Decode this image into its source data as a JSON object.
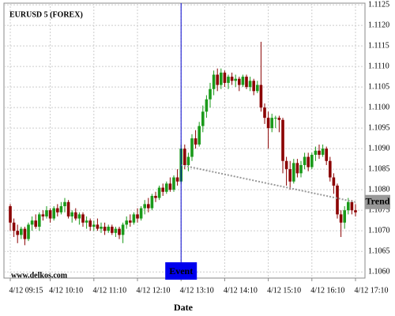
{
  "chart_data": {
    "type": "candlestick",
    "title": "EURUSD 5 (FOREX)",
    "x_label": "Date",
    "watermark": "www.delkos.com",
    "up_color": "#1a9a1a",
    "down_color": "#8b0000",
    "grid": true,
    "ylim": [
      1.10585,
      1.11254
    ],
    "yticks": [
      {
        "value": 1.106,
        "label": "1.1060"
      },
      1.1065,
      {
        "value": 1.107,
        "label": "1.1070"
      },
      1.1075,
      {
        "value": 1.108,
        "label": "1.1080"
      },
      1.1085,
      {
        "value": 1.109,
        "label": "1.1090"
      },
      1.1095,
      {
        "value": 1.11,
        "label": "1.1100"
      },
      1.1105,
      {
        "value": 1.111,
        "label": "1.1110"
      },
      1.1115,
      {
        "value": 1.112,
        "label": "1.1120"
      },
      1.1125
    ],
    "categories": [
      "4/12 09:15",
      null,
      null,
      null,
      null,
      null,
      null,
      null,
      null,
      null,
      null,
      "4/12 10:10",
      null,
      null,
      null,
      null,
      null,
      null,
      null,
      null,
      null,
      null,
      null,
      "4/12 11:10",
      null,
      null,
      null,
      null,
      null,
      null,
      null,
      null,
      null,
      null,
      null,
      "4/12 12:10",
      null,
      null,
      null,
      null,
      null,
      null,
      null,
      null,
      null,
      null,
      null,
      "4/12 13:10",
      null,
      null,
      null,
      null,
      null,
      null,
      null,
      null,
      null,
      null,
      null,
      "4/12 14:10",
      null,
      null,
      null,
      null,
      null,
      null,
      null,
      null,
      null,
      null,
      null,
      "4/12 15:10",
      null,
      null,
      null,
      null,
      null,
      null,
      null,
      null,
      null,
      null,
      null,
      "4/12 16:10",
      null,
      null,
      null,
      null,
      null,
      null,
      null,
      null,
      null,
      null,
      null,
      "4/12 17:10"
    ],
    "ohlc": [
      [
        1.1076,
        1.10765,
        1.107,
        1.1072
      ],
      [
        1.1072,
        1.1073,
        1.10685,
        1.107
      ],
      [
        1.107,
        1.10715,
        1.1067,
        1.1069
      ],
      [
        1.1069,
        1.1071,
        1.1068,
        1.10705
      ],
      [
        1.10705,
        1.1071,
        1.10665,
        1.1068
      ],
      [
        1.1068,
        1.1072,
        1.10675,
        1.10715
      ],
      [
        1.10715,
        1.10735,
        1.107,
        1.10725
      ],
      [
        1.10725,
        1.1074,
        1.10705,
        1.1071
      ],
      [
        1.1071,
        1.10745,
        1.107,
        1.1074
      ],
      [
        1.1074,
        1.1075,
        1.10725,
        1.10735
      ],
      [
        1.10735,
        1.1076,
        1.1073,
        1.1075
      ],
      [
        1.1075,
        1.10755,
        1.1072,
        1.1073
      ],
      [
        1.1073,
        1.1076,
        1.10725,
        1.10755
      ],
      [
        1.10755,
        1.10765,
        1.10735,
        1.10745
      ],
      [
        1.10745,
        1.1077,
        1.1074,
        1.1076
      ],
      [
        1.1076,
        1.1078,
        1.10745,
        1.1077
      ],
      [
        1.1077,
        1.10775,
        1.1073,
        1.10735
      ],
      [
        1.10735,
        1.1075,
        1.1072,
        1.10745
      ],
      [
        1.10745,
        1.10755,
        1.10725,
        1.1073
      ],
      [
        1.1073,
        1.10745,
        1.10715,
        1.1074
      ],
      [
        1.1074,
        1.10745,
        1.1071,
        1.1072
      ],
      [
        1.1072,
        1.10735,
        1.10705,
        1.10725
      ],
      [
        1.10725,
        1.1073,
        1.107,
        1.1071
      ],
      [
        1.1071,
        1.10725,
        1.107,
        1.10715
      ],
      [
        1.10715,
        1.1073,
        1.107,
        1.10705
      ],
      [
        1.10705,
        1.1072,
        1.10695,
        1.1071
      ],
      [
        1.1071,
        1.1072,
        1.1069,
        1.107
      ],
      [
        1.107,
        1.10715,
        1.10695,
        1.1071
      ],
      [
        1.1071,
        1.10715,
        1.1069,
        1.10695
      ],
      [
        1.10695,
        1.1071,
        1.10685,
        1.10705
      ],
      [
        1.10705,
        1.1071,
        1.1068,
        1.1069
      ],
      [
        1.1069,
        1.1072,
        1.1067,
        1.10715
      ],
      [
        1.10715,
        1.10735,
        1.10705,
        1.10725
      ],
      [
        1.10725,
        1.1074,
        1.1071,
        1.1072
      ],
      [
        1.1072,
        1.10745,
        1.10715,
        1.1074
      ],
      [
        1.1074,
        1.10755,
        1.1072,
        1.1073
      ],
      [
        1.1073,
        1.1076,
        1.10725,
        1.10755
      ],
      [
        1.10755,
        1.10775,
        1.1074,
        1.10765
      ],
      [
        1.10765,
        1.1078,
        1.10745,
        1.10755
      ],
      [
        1.10755,
        1.1079,
        1.1075,
        1.10785
      ],
      [
        1.10785,
        1.10795,
        1.1077,
        1.1078
      ],
      [
        1.1078,
        1.1081,
        1.10775,
        1.10805
      ],
      [
        1.10805,
        1.10815,
        1.10785,
        1.10795
      ],
      [
        1.10795,
        1.1082,
        1.1079,
        1.10815
      ],
      [
        1.10815,
        1.1083,
        1.10795,
        1.108
      ],
      [
        1.108,
        1.10835,
        1.10795,
        1.1083
      ],
      [
        1.1083,
        1.1085,
        1.1081,
        1.1082
      ],
      [
        1.1082,
        1.1091,
        1.10815,
        1.109
      ],
      [
        1.109,
        1.1091,
        1.1085,
        1.1086
      ],
      [
        1.1086,
        1.1089,
        1.10845,
        1.1088
      ],
      [
        1.1088,
        1.10935,
        1.1087,
        1.10925
      ],
      [
        1.10925,
        1.10945,
        1.109,
        1.1091
      ],
      [
        1.1091,
        1.10965,
        1.10905,
        1.10955
      ],
      [
        1.10955,
        1.11005,
        1.1094,
        1.1099
      ],
      [
        1.1099,
        1.1103,
        1.10975,
        1.1102
      ],
      [
        1.1102,
        1.1106,
        1.11,
        1.11045
      ],
      [
        1.11045,
        1.1109,
        1.1103,
        1.1108
      ],
      [
        1.1108,
        1.11095,
        1.1104,
        1.11055
      ],
      [
        1.11055,
        1.11095,
        1.11045,
        1.11085
      ],
      [
        1.11085,
        1.1109,
        1.1105,
        1.1106
      ],
      [
        1.1106,
        1.1108,
        1.11045,
        1.11075
      ],
      [
        1.11075,
        1.11085,
        1.11055,
        1.11065
      ],
      [
        1.11065,
        1.1108,
        1.1105,
        1.1107
      ],
      [
        1.1107,
        1.11075,
        1.1104,
        1.11055
      ],
      [
        1.11055,
        1.1108,
        1.1105,
        1.11075
      ],
      [
        1.11075,
        1.1108,
        1.11045,
        1.1105
      ],
      [
        1.1105,
        1.11075,
        1.1104,
        1.11065
      ],
      [
        1.11065,
        1.1107,
        1.1103,
        1.1104
      ],
      [
        1.1104,
        1.11065,
        1.11035,
        1.11055
      ],
      [
        1.11055,
        1.1116,
        1.1099,
        1.11
      ],
      [
        1.11,
        1.1101,
        1.1096,
        1.10975
      ],
      [
        1.10975,
        1.1099,
        1.109,
        1.1095
      ],
      [
        1.1095,
        1.10985,
        1.1094,
        1.10975
      ],
      [
        1.10975,
        1.1098,
        1.1095,
        1.10975
      ],
      [
        1.10975,
        1.1098,
        1.1094,
        1.1097
      ],
      [
        1.1097,
        1.10975,
        1.1084,
        1.1087
      ],
      [
        1.1087,
        1.1088,
        1.1081,
        1.1085
      ],
      [
        1.1085,
        1.1087,
        1.108,
        1.1082
      ],
      [
        1.1082,
        1.10875,
        1.10815,
        1.10865
      ],
      [
        1.10865,
        1.10875,
        1.1083,
        1.1084
      ],
      [
        1.1084,
        1.1087,
        1.1083,
        1.1086
      ],
      [
        1.1086,
        1.1089,
        1.1085,
        1.1088
      ],
      [
        1.1088,
        1.1089,
        1.10845,
        1.10855
      ],
      [
        1.10855,
        1.1089,
        1.1085,
        1.10885
      ],
      [
        1.10885,
        1.10905,
        1.1087,
        1.10895
      ],
      [
        1.10895,
        1.1091,
        1.10875,
        1.10885
      ],
      [
        1.10885,
        1.1091,
        1.1088,
        1.109
      ],
      [
        1.109,
        1.10905,
        1.1086,
        1.1087
      ],
      [
        1.1087,
        1.1088,
        1.1082,
        1.1083
      ],
      [
        1.1083,
        1.1084,
        1.1079,
        1.1081
      ],
      [
        1.1081,
        1.10815,
        1.1073,
        1.1074
      ],
      [
        1.1074,
        1.1075,
        1.10685,
        1.1072
      ],
      [
        1.1072,
        1.1076,
        1.10705,
        1.1075
      ],
      [
        1.1075,
        1.1078,
        1.1074,
        1.1077
      ],
      [
        1.1077,
        1.10775,
        1.1074,
        1.1075
      ],
      [
        1.1075,
        1.10765,
        1.10735,
        1.10745
      ]
    ],
    "event": {
      "label": "Event",
      "index": 47
    },
    "trend": {
      "label": "Trend",
      "start": [
        47,
        1.1086
      ],
      "end": [
        95,
        1.1077
      ]
    }
  }
}
